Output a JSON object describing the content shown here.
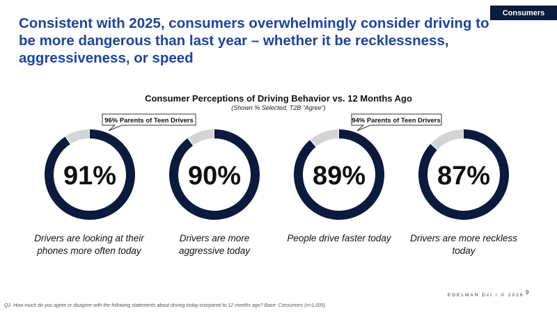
{
  "section_tag": "Consumers",
  "headline": "Consistent with 2025, consumers overwhelmingly consider driving to be more dangerous than last year – whether it be recklessness, aggressiveness, or speed",
  "colors": {
    "primary": "#0b1a3d",
    "remainder": "#d3d4d6",
    "headline": "#1e44a0"
  },
  "chart_data": {
    "type": "pie",
    "variant": "donut",
    "title": "Consumer Perceptions of Driving Behavior vs. 12 Months Ago",
    "subtitle": "(Shown % Selected, T2B “Agree”)",
    "unit": "%",
    "items": [
      {
        "label": "91%",
        "value": 91,
        "caption": "Drivers are looking at their phones more often today",
        "callout": "96% Parents of Teen Drivers"
      },
      {
        "label": "90%",
        "value": 90,
        "caption": "Drivers are more aggressive today",
        "callout": null
      },
      {
        "label": "89%",
        "value": 89,
        "caption": "People drive faster today",
        "callout": "94% Parents of Teen Drivers"
      },
      {
        "label": "87%",
        "value": 87,
        "caption": "Drivers are more reckless today",
        "callout": null
      }
    ]
  },
  "footer": {
    "brand": "EDELMAN DxI / © 2026",
    "page_number": "9",
    "footnote": "Q2. How much do you agree or disagree with the following statements about driving today compared to 12 months ago? Base: Consumers (n=1,005)"
  }
}
